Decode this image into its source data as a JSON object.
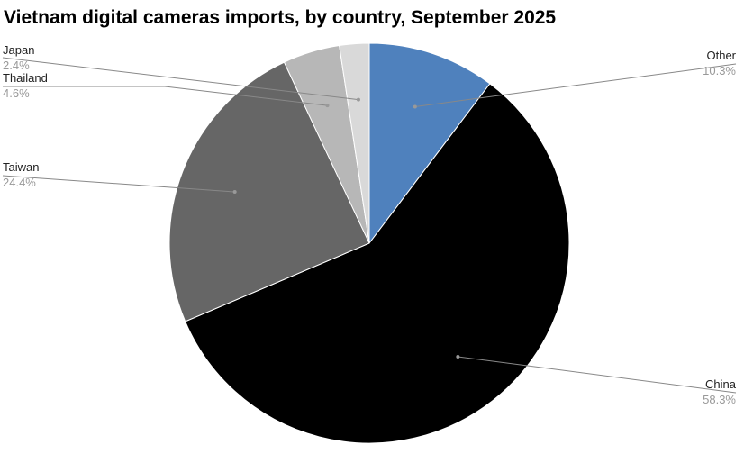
{
  "chart_data": {
    "type": "pie",
    "title": "Vietnam digital cameras imports,  by country, September 2025",
    "start_angle": "top",
    "direction": "clockwise",
    "slices": [
      {
        "label": "Other",
        "value": 10.3,
        "display": "10.3%",
        "color": "#4f81bd"
      },
      {
        "label": "China",
        "value": 58.3,
        "display": "58.3%",
        "color": "#000000"
      },
      {
        "label": "Taiwan",
        "value": 24.4,
        "display": "24.4%",
        "color": "#666666"
      },
      {
        "label": "Thailand",
        "value": 4.6,
        "display": "4.6%",
        "color": "#b7b7b7"
      },
      {
        "label": "Japan",
        "value": 2.4,
        "display": "2.4%",
        "color": "#d9d9d9"
      }
    ],
    "legend": "callout labels"
  }
}
